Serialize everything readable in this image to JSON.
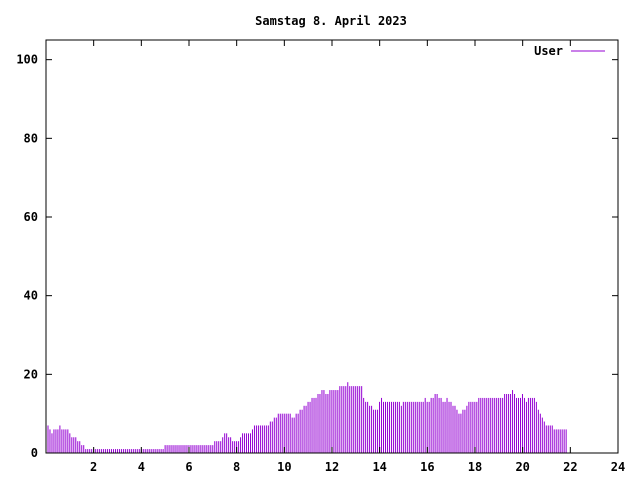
{
  "chart_data": {
    "type": "bar",
    "title": "Samstag 8. April 2023",
    "xlabel": "",
    "ylabel": "",
    "xlim": [
      0,
      24
    ],
    "ylim": [
      0,
      105
    ],
    "xticks": [
      2,
      4,
      6,
      8,
      10,
      12,
      14,
      16,
      18,
      20,
      22,
      24
    ],
    "yticks": [
      0,
      20,
      40,
      60,
      80,
      100
    ],
    "grid": false,
    "legend_position": "top-right",
    "series": [
      {
        "name": "User",
        "color": "#9400d3",
        "x_start": 0,
        "x_step": 0.0833,
        "values": [
          7,
          7,
          6,
          5,
          6,
          6,
          6,
          7,
          6,
          6,
          6,
          6,
          5,
          4,
          4,
          4,
          3,
          3,
          2,
          2,
          1,
          1,
          1,
          1,
          1,
          1,
          1,
          1,
          1,
          1,
          1,
          1,
          1,
          1,
          1,
          1,
          1,
          1,
          1,
          1,
          1,
          1,
          1,
          1,
          1,
          1,
          1,
          1,
          1,
          1,
          1,
          1,
          1,
          1,
          1,
          1,
          1,
          1,
          1,
          1,
          2,
          2,
          2,
          2,
          2,
          2,
          2,
          2,
          2,
          2,
          2,
          2,
          2,
          2,
          2,
          2,
          2,
          2,
          2,
          2,
          2,
          2,
          2,
          2,
          2,
          3,
          3,
          3,
          3,
          4,
          5,
          5,
          4,
          4,
          3,
          3,
          3,
          3,
          4,
          5,
          5,
          5,
          5,
          5,
          6,
          7,
          7,
          7,
          7,
          7,
          7,
          7,
          7,
          8,
          8,
          9,
          9,
          10,
          10,
          10,
          10,
          10,
          10,
          10,
          9,
          9,
          10,
          10,
          11,
          11,
          12,
          12,
          13,
          13,
          14,
          14,
          14,
          15,
          15,
          16,
          16,
          15,
          15,
          16,
          16,
          16,
          16,
          16,
          17,
          17,
          17,
          17,
          18,
          17,
          17,
          17,
          17,
          17,
          17,
          17,
          14,
          13,
          13,
          12,
          12,
          11,
          11,
          11,
          13,
          14,
          13,
          13,
          13,
          13,
          13,
          13,
          13,
          13,
          13,
          12,
          13,
          13,
          13,
          13,
          13,
          13,
          13,
          13,
          13,
          13,
          13,
          14,
          13,
          13,
          14,
          14,
          15,
          15,
          14,
          14,
          13,
          13,
          14,
          13,
          13,
          12,
          12,
          11,
          10,
          10,
          11,
          11,
          12,
          13,
          13,
          13,
          13,
          13,
          14,
          14,
          14,
          14,
          14,
          14,
          14,
          14,
          14,
          14,
          14,
          14,
          14,
          15,
          15,
          15,
          15,
          16,
          15,
          14,
          14,
          14,
          15,
          14,
          13,
          14,
          14,
          14,
          14,
          13,
          11,
          10,
          9,
          8,
          7,
          7,
          7,
          7,
          6,
          6,
          6,
          6,
          6,
          6,
          6
        ]
      }
    ]
  }
}
